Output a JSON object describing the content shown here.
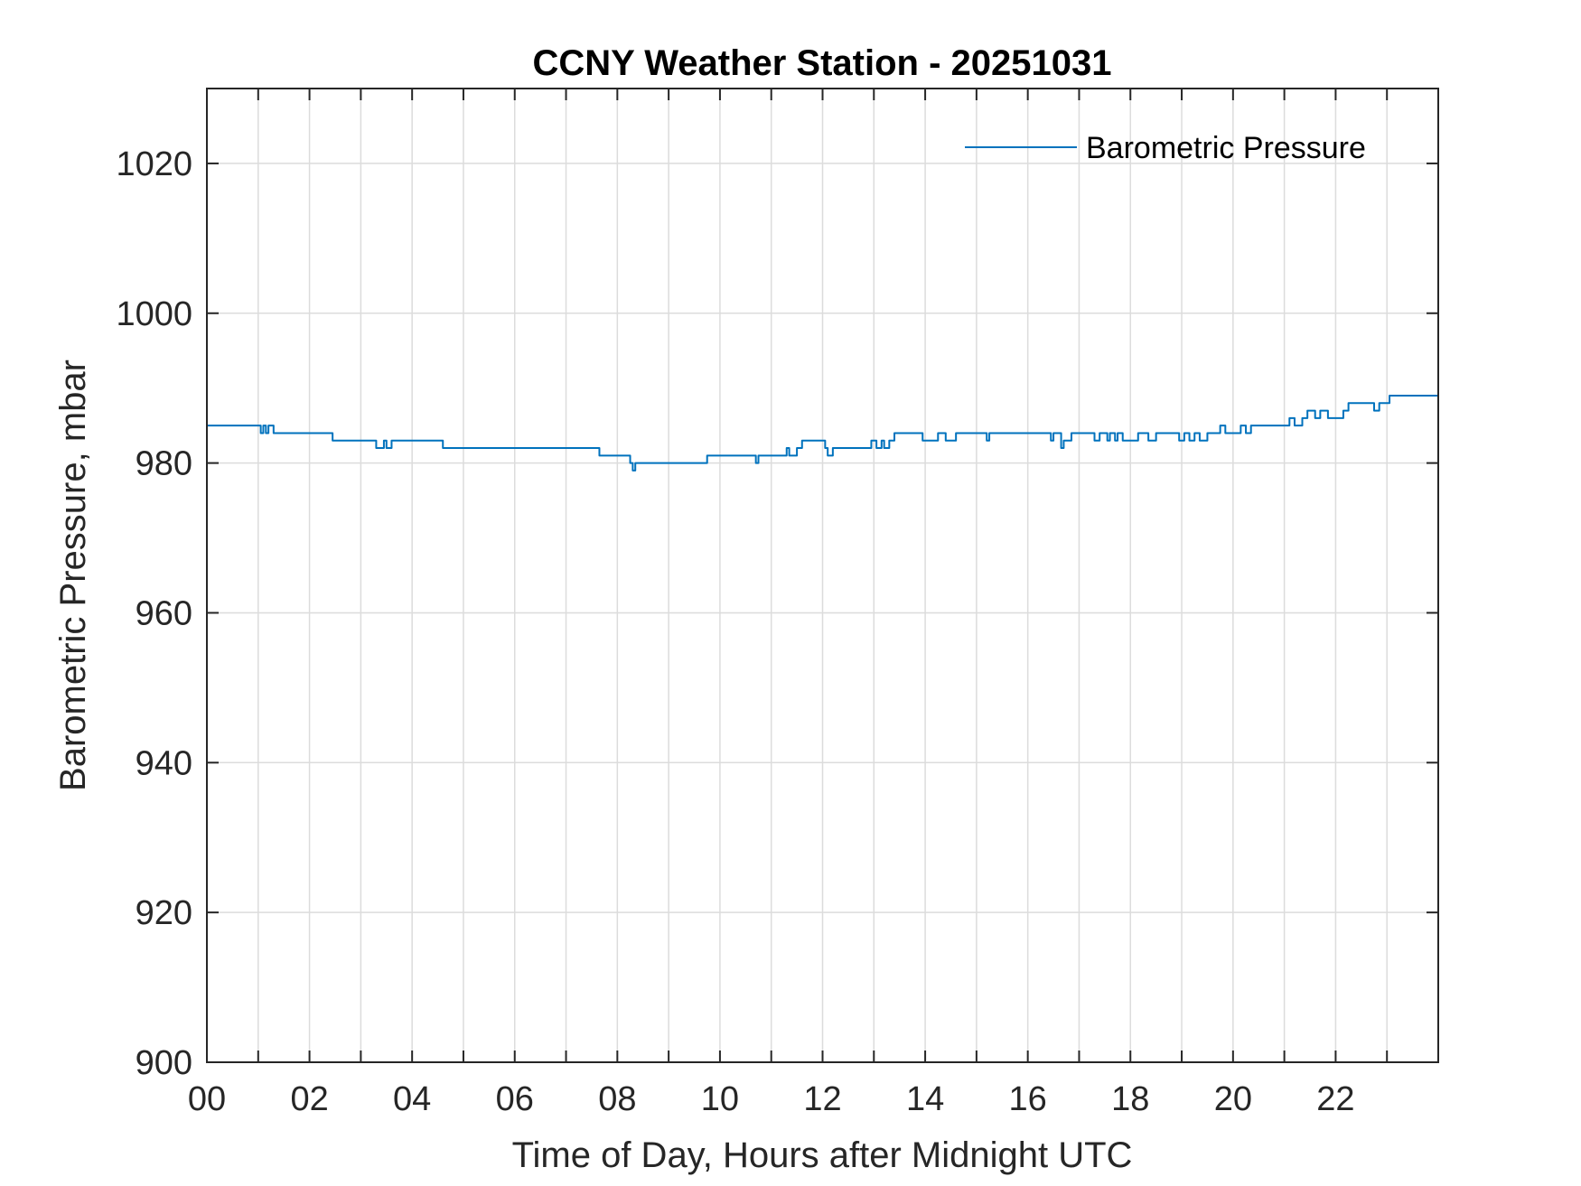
{
  "chart_data": {
    "type": "line",
    "title": "CCNY Weather Station - 20251031",
    "xlabel": "Time of Day, Hours after Midnight UTC",
    "ylabel": "Barometric Pressure, mbar",
    "xlim": [
      0,
      24
    ],
    "ylim": [
      900,
      1030
    ],
    "x_ticks": [
      0,
      2,
      4,
      6,
      8,
      10,
      12,
      14,
      16,
      18,
      20,
      22
    ],
    "x_tick_labels": [
      "00",
      "02",
      "04",
      "06",
      "08",
      "10",
      "12",
      "14",
      "16",
      "18",
      "20",
      "22"
    ],
    "x_minor_grid_step": 1,
    "y_ticks": [
      900,
      920,
      940,
      960,
      980,
      1000,
      1020
    ],
    "y_tick_labels": [
      "900",
      "920",
      "940",
      "960",
      "980",
      "1000",
      "1020"
    ],
    "grid": true,
    "legend": {
      "position": "top-right",
      "entries": [
        "Barometric Pressure"
      ]
    },
    "series": [
      {
        "name": "Barometric Pressure",
        "color": "#0072BD",
        "step": true,
        "x": [
          0.0,
          1.05,
          1.1,
          1.15,
          1.2,
          1.3,
          2.45,
          3.3,
          3.45,
          3.5,
          3.6,
          4.6,
          7.65,
          8.25,
          8.3,
          8.35,
          9.75,
          10.7,
          10.75,
          11.3,
          11.35,
          11.5,
          11.6,
          12.05,
          12.1,
          12.2,
          12.95,
          13.05,
          13.15,
          13.2,
          13.3,
          13.4,
          13.95,
          14.25,
          14.4,
          14.6,
          15.2,
          15.25,
          16.45,
          16.5,
          16.65,
          16.7,
          16.8,
          16.85,
          17.3,
          17.4,
          17.55,
          17.6,
          17.7,
          17.75,
          17.85,
          17.95,
          18.15,
          18.35,
          18.5,
          18.95,
          19.05,
          19.15,
          19.25,
          19.35,
          19.5,
          19.75,
          19.85,
          20.15,
          20.25,
          20.35,
          20.5,
          21.1,
          21.2,
          21.35,
          21.45,
          21.6,
          21.7,
          21.85,
          22.15,
          22.25,
          22.75,
          22.85,
          23.05,
          23.95,
          24.0
        ],
        "y": [
          985,
          984,
          985,
          984,
          985,
          984,
          983,
          982,
          983,
          982,
          983,
          982,
          981,
          980,
          979,
          980,
          981,
          980,
          981,
          982,
          981,
          982,
          983,
          982,
          981,
          982,
          983,
          982,
          983,
          982,
          983,
          984,
          983,
          984,
          983,
          984,
          983,
          984,
          983,
          984,
          982,
          983,
          983,
          984,
          983,
          984,
          983,
          984,
          983,
          984,
          983,
          983,
          984,
          983,
          984,
          983,
          984,
          983,
          984,
          983,
          984,
          985,
          984,
          985,
          984,
          985,
          985,
          986,
          985,
          986,
          987,
          986,
          987,
          986,
          987,
          988,
          987,
          988,
          989,
          989,
          989
        ]
      }
    ]
  }
}
